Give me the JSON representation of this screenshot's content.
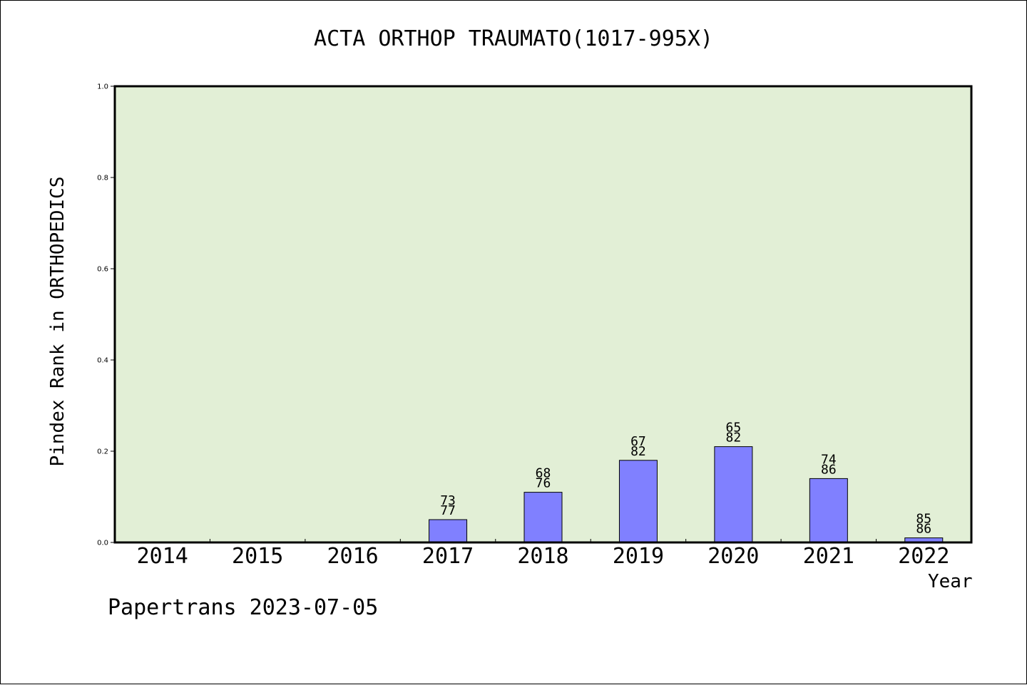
{
  "chart_data": {
    "type": "bar",
    "title": "ACTA ORTHOP TRAUMATO(1017-995X)",
    "xlabel": "Year",
    "ylabel": "Pindex Rank in ORTHOPEDICS",
    "categories": [
      "2014",
      "2015",
      "2016",
      "2017",
      "2018",
      "2019",
      "2020",
      "2021",
      "2022"
    ],
    "values": [
      0,
      0,
      0,
      0.05,
      0.11,
      0.18,
      0.21,
      0.14,
      0.01
    ],
    "bar_labels_top": [
      "",
      "",
      "",
      "73",
      "68",
      "67",
      "65",
      "74",
      "85"
    ],
    "bar_labels_bottom": [
      "",
      "",
      "",
      "77",
      "76",
      "82",
      "82",
      "86",
      "86"
    ],
    "ylim": [
      0,
      1.0
    ],
    "yticks": [
      "0.0",
      "0.2",
      "0.4",
      "0.6",
      "0.8",
      "1.0"
    ],
    "grid": false,
    "colors": {
      "plot_background": "#e2efd6",
      "bar_fill": "#8080ff",
      "bar_edge": "#000000"
    }
  },
  "footer": {
    "credit": "Papertrans 2023-07-05"
  }
}
